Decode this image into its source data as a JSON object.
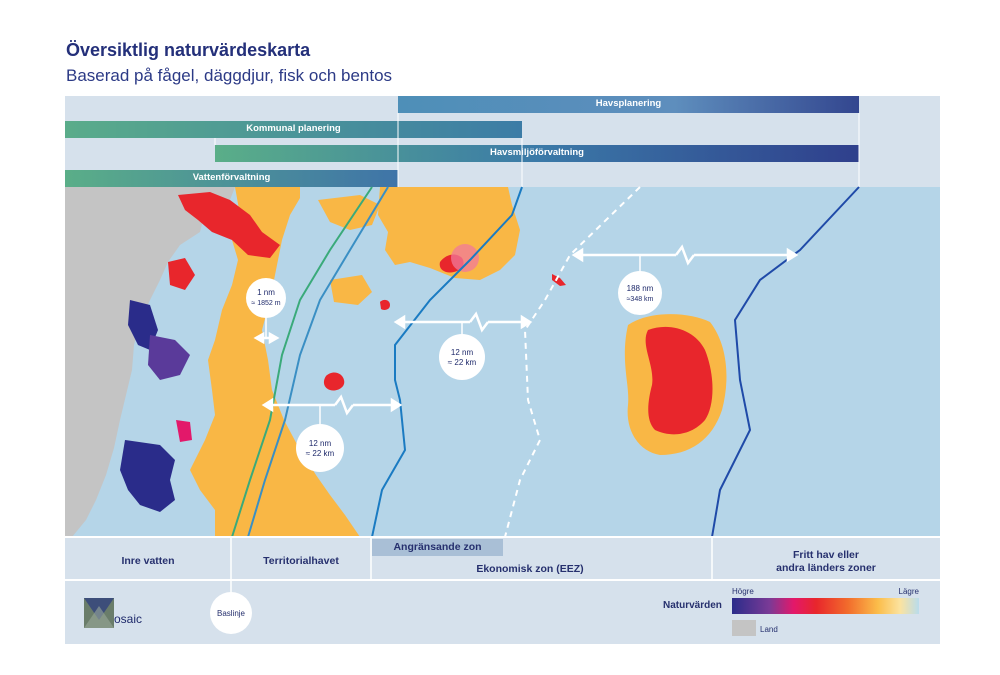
{
  "header": {
    "title": "Översiktlig naturvärdeskarta",
    "subtitle": "Baserad på fågel, däggdjur, fisk och bentos"
  },
  "bands": {
    "havsplanering": "Havsplanering",
    "kommunal": "Kommunal planering",
    "havsmiljo": "Havsmiljöförvaltning",
    "vatten": "Vattenförvaltning"
  },
  "distances": {
    "d1_line1": "1 nm",
    "d1_line2": "≈ 1852 m",
    "d2_line1": "12 nm",
    "d2_line2": "≈ 22 km",
    "d3_line1": "12 nm",
    "d3_line2": "≈ 22 km",
    "d4_line1": "188 nm",
    "d4_line2": "≈348 km"
  },
  "zones": {
    "inre": "Inre vatten",
    "territorial": "Territorialhavet",
    "angransande": "Angränsande zon",
    "eez": "Ekonomisk zon (EEZ)",
    "fritt_line1": "Fritt hav eller",
    "fritt_line2": "andra länders zoner",
    "baslinje": "Baslinje"
  },
  "legend": {
    "title": "Naturvärden",
    "high": "Högre",
    "low": "Lägre",
    "land": "Land"
  },
  "logo": {
    "text": "osaic"
  },
  "colors": {
    "land": "#c4c4c4",
    "sea": "#b5d5e8",
    "high_value_red": "#e8262c",
    "medium_value_orange": "#f9b745",
    "highest_value_navy": "#2a2c8a",
    "band_green": "#52a98a",
    "band_blue": "#3f74a8",
    "band_navy": "#2f3f8c"
  }
}
